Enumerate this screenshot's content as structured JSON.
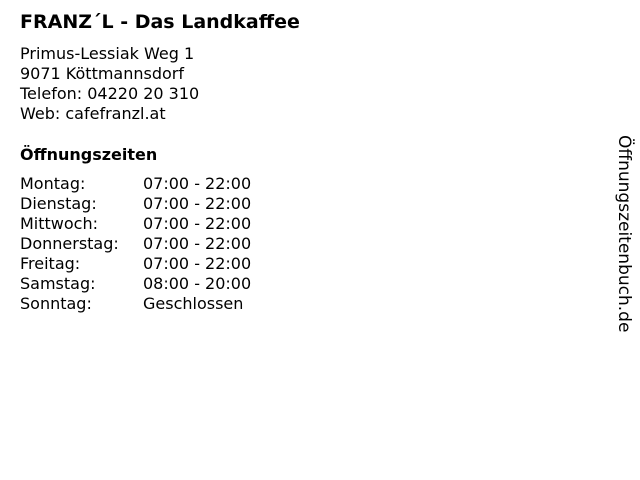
{
  "title": "FRANZ´L - Das Landkaffee",
  "address": {
    "street": "Primus-Lessiak Weg 1",
    "city": "9071 Köttmannsdorf",
    "phone": "Telefon: 04220 20 310",
    "web": "Web: cafefranzl.at"
  },
  "hours_heading": "Öffnungszeiten",
  "hours": [
    {
      "day": "Montag:",
      "time": "07:00 - 22:00"
    },
    {
      "day": "Dienstag:",
      "time": "07:00 - 22:00"
    },
    {
      "day": "Mittwoch:",
      "time": "07:00 - 22:00"
    },
    {
      "day": "Donnerstag:",
      "time": "07:00 - 22:00"
    },
    {
      "day": "Freitag:",
      "time": "07:00 - 22:00"
    },
    {
      "day": "Samstag:",
      "time": "08:00 - 20:00"
    },
    {
      "day": "Sonntag:",
      "time": "Geschlossen"
    }
  ],
  "watermark": "Öffnungszeitenbuch.de"
}
